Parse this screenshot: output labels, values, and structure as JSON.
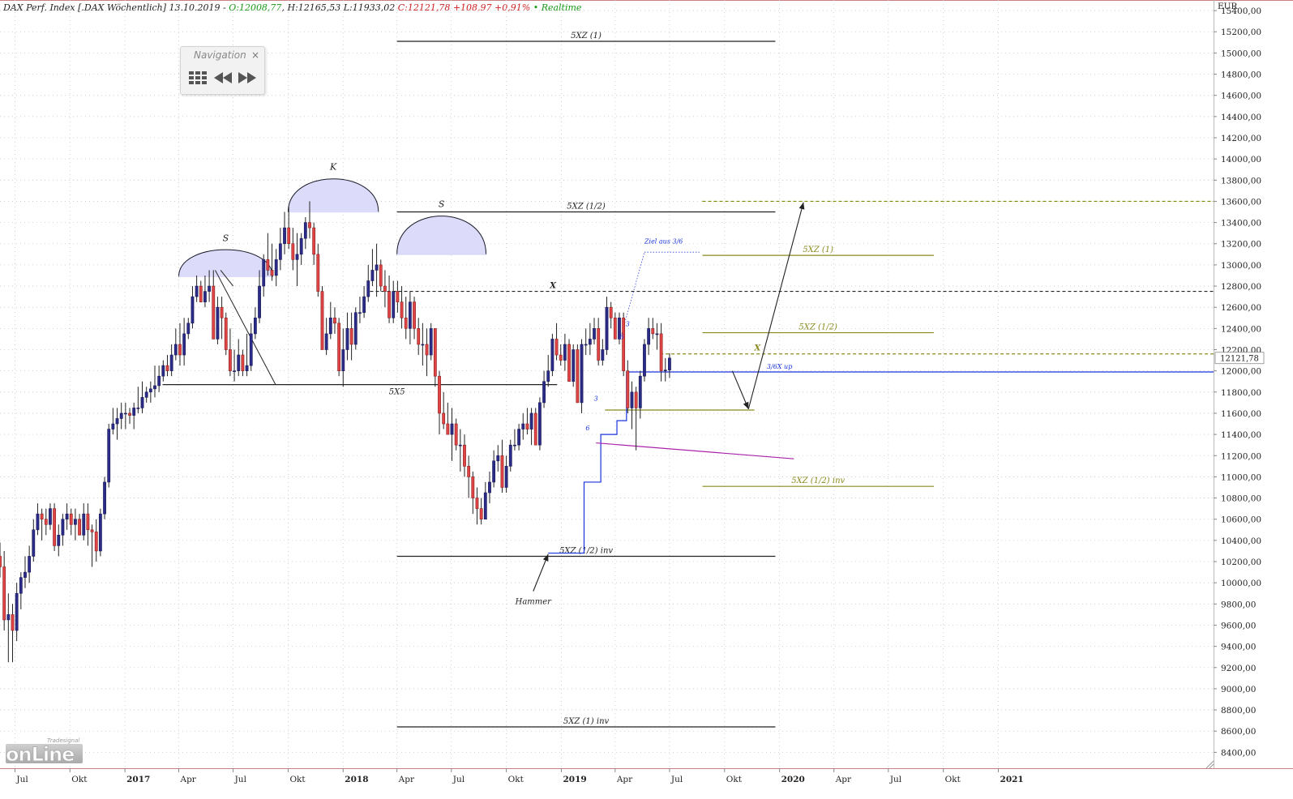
{
  "header": {
    "instrument": "DAX Perf. Index [.DAX Wöchentlich] 13.10.2019 -",
    "open": "O:12008,77",
    "high_low": "H:12165,53 L:11933,02",
    "close": "C:12121,78 +108,97 +0,91%",
    "realtime": "• Realtime"
  },
  "navigation": {
    "title": "Navigation",
    "close": "×"
  },
  "logo": {
    "small": "Tradesignal",
    "big": "onLine"
  },
  "chart_data": {
    "type": "candlestick",
    "title": "DAX Perf. Index [.DAX Wöchentlich] 13.10.2019",
    "currency_label": "EUR",
    "y_range": [
      8250,
      15500
    ],
    "y_ticks": [
      8400,
      8600,
      8800,
      9000,
      9200,
      9400,
      9600,
      9800,
      10000,
      10200,
      10400,
      10600,
      10800,
      11000,
      11200,
      11400,
      11600,
      11800,
      12000,
      12200,
      12400,
      12600,
      12800,
      13000,
      13200,
      13400,
      13600,
      13800,
      14000,
      14200,
      14400,
      14600,
      14800,
      15000,
      15200,
      15400
    ],
    "y_tick_labels": [
      "8400,00",
      "8600,00",
      "8800,00",
      "9000,00",
      "9200,00",
      "9400,00",
      "9600,00",
      "9800,00",
      "10000,00",
      "10200,00",
      "10400,00",
      "10600,00",
      "10800,00",
      "11000,00",
      "11200,00",
      "11400,00",
      "11600,00",
      "11800,00",
      "12000,00",
      "12200,00",
      "12400,00",
      "12600,00",
      "12800,00",
      "13000,00",
      "13200,00",
      "13400,00",
      "13600,00",
      "13800,00",
      "14000,00",
      "14200,00",
      "14400,00",
      "14600,00",
      "14800,00",
      "15000,00",
      "15200,00",
      "15400,00"
    ],
    "x_range": [
      "2016-06-06",
      "2021-12-27"
    ],
    "x_ticks": [
      {
        "date": "2016-07-01",
        "label": "Jul",
        "bold": false
      },
      {
        "date": "2016-10-01",
        "label": "Okt",
        "bold": false
      },
      {
        "date": "2017-01-01",
        "label": "2017",
        "bold": true
      },
      {
        "date": "2017-04-01",
        "label": "Apr",
        "bold": false
      },
      {
        "date": "2017-07-01",
        "label": "Jul",
        "bold": false
      },
      {
        "date": "2017-10-01",
        "label": "Okt",
        "bold": false
      },
      {
        "date": "2018-01-01",
        "label": "2018",
        "bold": true
      },
      {
        "date": "2018-04-01",
        "label": "Apr",
        "bold": false
      },
      {
        "date": "2018-07-01",
        "label": "Jul",
        "bold": false
      },
      {
        "date": "2018-10-01",
        "label": "Okt",
        "bold": false
      },
      {
        "date": "2019-01-01",
        "label": "2019",
        "bold": true
      },
      {
        "date": "2019-04-01",
        "label": "Apr",
        "bold": false
      },
      {
        "date": "2019-07-01",
        "label": "Jul",
        "bold": false
      },
      {
        "date": "2019-10-01",
        "label": "Okt",
        "bold": false
      },
      {
        "date": "2020-01-01",
        "label": "2020",
        "bold": true
      },
      {
        "date": "2020-04-01",
        "label": "Apr",
        "bold": false
      },
      {
        "date": "2020-07-01",
        "label": "Jul",
        "bold": false
      },
      {
        "date": "2020-10-01",
        "label": "Okt",
        "bold": false
      },
      {
        "date": "2021-01-01",
        "label": "2021",
        "bold": true
      }
    ],
    "grid": true,
    "last_price": {
      "value": 12121.78,
      "label": "12121,78"
    },
    "candles": {
      "first_date": "2016-06-06",
      "interval_days": 7,
      "open": [
        10250,
        10150,
        9650,
        9700,
        9550,
        9900,
        10050,
        10100,
        10250,
        10500,
        10650,
        10600,
        10550,
        10700,
        10350,
        10450,
        10600,
        10650,
        10550,
        10600,
        10450,
        10650,
        10500,
        10480,
        10300,
        10650,
        10950,
        11450,
        11500,
        11550,
        11600,
        11600,
        11580,
        11650,
        11650,
        11750,
        11800,
        11830,
        11860,
        11950,
        12050,
        12000,
        12150,
        12250,
        12150,
        12350,
        12450,
        12700,
        12800,
        12650,
        12750,
        12800,
        12300,
        12600,
        12500,
        12200,
        12000,
        12000,
        12150,
        12000,
        12050,
        12350,
        12500,
        12800,
        13050,
        12950,
        12900,
        13050,
        13200,
        13350,
        13200,
        13050,
        13100,
        13250,
        13400,
        13350,
        13100,
        12750,
        12200,
        12350,
        12500,
        12450,
        12000,
        12200,
        12400,
        12250,
        12550,
        12550,
        12700,
        12850,
        12950,
        13000,
        12800,
        12750,
        12500,
        12750,
        12650,
        12500,
        12400,
        12650,
        12400,
        12250,
        12250,
        12150,
        12400,
        11950,
        11600,
        11500,
        11400,
        11500,
        11300,
        11300,
        11100,
        11000,
        10800,
        10700,
        10600,
        10850,
        10950,
        11150,
        11200,
        10900,
        11100,
        11300,
        11300,
        11450,
        11500,
        11450,
        11600,
        11300,
        11700,
        11900,
        12000,
        12300,
        12150,
        12100,
        12250,
        11900,
        12200,
        11700,
        12250,
        12250,
        12300,
        12400,
        12100,
        12200,
        12600,
        12500,
        12300,
        12500,
        12000,
        11650,
        11800,
        11650,
        11950,
        12250,
        12400,
        12350,
        12350,
        12000,
        12008
      ],
      "high": [
        10380,
        10300,
        9900,
        9800,
        10000,
        10100,
        10250,
        10350,
        10600,
        10750,
        10700,
        10700,
        10750,
        10750,
        10550,
        10650,
        10750,
        10700,
        10700,
        10650,
        10750,
        10750,
        10550,
        10600,
        10700,
        11000,
        11500,
        11650,
        11650,
        11700,
        11700,
        11650,
        11700,
        11850,
        11900,
        11850,
        11900,
        12050,
        12050,
        12100,
        12150,
        12250,
        12400,
        12450,
        12500,
        12500,
        12800,
        12900,
        12850,
        12900,
        12950,
        12950,
        12700,
        12700,
        12550,
        12400,
        12200,
        12300,
        12200,
        12350,
        12450,
        12600,
        12950,
        13100,
        13300,
        13200,
        13150,
        13350,
        13500,
        13550,
        13350,
        13300,
        13300,
        13450,
        13600,
        13400,
        13200,
        12800,
        12500,
        12650,
        12600,
        12500,
        12400,
        12550,
        12550,
        12600,
        12700,
        12800,
        13000,
        13150,
        13200,
        13050,
        12950,
        12900,
        12850,
        12850,
        12800,
        12700,
        12750,
        12700,
        12500,
        12450,
        12400,
        12450,
        12400,
        12000,
        11800,
        11700,
        11650,
        11550,
        11450,
        11400,
        11200,
        11050,
        10900,
        10800,
        10950,
        11050,
        11250,
        11300,
        11350,
        11200,
        11350,
        11450,
        11500,
        11600,
        11650,
        11650,
        11650,
        11750,
        12000,
        12150,
        12350,
        12450,
        12250,
        12350,
        12300,
        12250,
        12250,
        12300,
        12400,
        12450,
        12500,
        12500,
        12300,
        12700,
        12650,
        12550,
        12550,
        12550,
        12100,
        11900,
        11850,
        12000,
        12300,
        12500,
        12500,
        12450,
        12450,
        12120,
        12165
      ],
      "low": [
        10050,
        9550,
        9250,
        9250,
        9450,
        9750,
        9950,
        10000,
        10200,
        10450,
        10400,
        10450,
        10500,
        10300,
        10250,
        10350,
        10500,
        10450,
        10400,
        10450,
        10400,
        10350,
        10150,
        10200,
        10250,
        10600,
        10900,
        11400,
        11350,
        11450,
        11450,
        11500,
        11450,
        11600,
        11600,
        11700,
        11700,
        11750,
        11800,
        11900,
        11950,
        11950,
        12100,
        12050,
        12050,
        12300,
        12400,
        12650,
        12650,
        12600,
        12650,
        12350,
        12250,
        12300,
        12150,
        11950,
        11900,
        11950,
        11950,
        11950,
        12000,
        12300,
        12450,
        12700,
        12900,
        12850,
        12800,
        12950,
        13100,
        13150,
        12950,
        12800,
        13000,
        13150,
        13250,
        13000,
        12700,
        12200,
        12150,
        12300,
        12350,
        11950,
        11850,
        12100,
        12100,
        12200,
        12450,
        12500,
        12650,
        12800,
        12700,
        12750,
        12600,
        12450,
        12450,
        12550,
        12400,
        12300,
        12250,
        12300,
        12150,
        12050,
        11950,
        12100,
        11850,
        11400,
        11450,
        11400,
        11150,
        11250,
        11050,
        11000,
        10800,
        10650,
        10550,
        10550,
        10600,
        10750,
        10900,
        11050,
        10850,
        10850,
        11050,
        11250,
        11250,
        11350,
        11400,
        11300,
        11300,
        11250,
        11650,
        11850,
        11950,
        12100,
        12050,
        12000,
        11950,
        11850,
        11850,
        11600,
        12150,
        12150,
        12250,
        12050,
        12050,
        12150,
        12400,
        12300,
        12250,
        11950,
        11600,
        11450,
        11250,
        11550,
        11900,
        12150,
        12300,
        12200,
        11900,
        11900,
        11933
      ],
      "close": [
        10150,
        9650,
        9700,
        9550,
        9900,
        10050,
        10100,
        10250,
        10500,
        10650,
        10600,
        10550,
        10700,
        10350,
        10450,
        10600,
        10650,
        10550,
        10600,
        10450,
        10650,
        10500,
        10480,
        10300,
        10650,
        10950,
        11450,
        11500,
        11550,
        11600,
        11600,
        11580,
        11650,
        11650,
        11750,
        11800,
        11830,
        11860,
        11950,
        12050,
        12000,
        12150,
        12250,
        12150,
        12350,
        12450,
        12700,
        12800,
        12650,
        12750,
        12800,
        12300,
        12600,
        12500,
        12200,
        12000,
        12000,
        12150,
        12000,
        12050,
        12350,
        12500,
        12800,
        13050,
        12950,
        12900,
        13050,
        13200,
        13350,
        13200,
        13050,
        13100,
        13250,
        13400,
        13350,
        13100,
        12750,
        12200,
        12350,
        12500,
        12450,
        12000,
        12200,
        12400,
        12250,
        12550,
        12550,
        12700,
        12850,
        12950,
        13000,
        12800,
        12750,
        12500,
        12750,
        12650,
        12500,
        12400,
        12650,
        12400,
        12250,
        12250,
        12150,
        12400,
        11950,
        11600,
        11500,
        11400,
        11500,
        11300,
        11300,
        11100,
        11000,
        10800,
        10700,
        10600,
        10850,
        10950,
        11150,
        11200,
        10900,
        11100,
        11300,
        11300,
        11450,
        11500,
        11450,
        11600,
        11300,
        11700,
        11900,
        12000,
        12300,
        12150,
        12100,
        12250,
        11900,
        12200,
        11700,
        12250,
        12250,
        12300,
        12400,
        12100,
        12200,
        12600,
        12500,
        12300,
        12500,
        12000,
        11650,
        11800,
        11650,
        11950,
        12250,
        12400,
        12350,
        12350,
        12000,
        12008,
        12121
      ]
    },
    "annotations": {
      "arcs": [
        {
          "label": "S",
          "start": "2017-04-01",
          "end": "2017-09-05",
          "base": 12890,
          "peak": 13150
        },
        {
          "label": "K",
          "start": "2017-10-01",
          "end": "2018-03-01",
          "base": 13500,
          "peak": 13820
        },
        {
          "label": "S",
          "start": "2018-04-01",
          "end": "2018-08-28",
          "base": 13100,
          "peak": 13470
        }
      ],
      "lines": [
        {
          "label": "5XZ (1)",
          "y": 15110,
          "x1": "2018-04-01",
          "x2": "2019-12-25",
          "color": "#222222",
          "dash": false
        },
        {
          "label": "5XZ (1/2)",
          "y": 13500,
          "x1": "2018-04-01",
          "x2": "2019-12-25",
          "color": "#222222",
          "dash": false
        },
        {
          "label": "X",
          "y": 12750,
          "x1": "2018-02-15",
          "x2": "2021-12-27",
          "color": "#222222",
          "dash": true
        },
        {
          "label": "",
          "y": 11870,
          "x1": "2017-03-05",
          "x2": "2018-12-25",
          "color": "#222222",
          "dash": false
        },
        {
          "label": "5XZ (1/2) inv",
          "y": 10250,
          "x1": "2018-04-01",
          "x2": "2019-12-25",
          "color": "#222222",
          "dash": false
        },
        {
          "label": "5XZ (1) inv",
          "y": 8640,
          "x1": "2018-04-01",
          "x2": "2019-12-25",
          "color": "#222222",
          "dash": false
        },
        {
          "label": "",
          "y": 13600,
          "x1": "2019-08-25",
          "x2": "2021-12-27",
          "color": "#7f8a00",
          "dash": true
        },
        {
          "label": "5XZ (1)",
          "y": 13090,
          "x1": "2019-08-25",
          "x2": "2020-09-15",
          "color": "#8a8a1e",
          "dash": false
        },
        {
          "label": "5XZ (1/2)",
          "y": 12360,
          "x1": "2019-08-25",
          "x2": "2020-09-15",
          "color": "#8a8a1e",
          "dash": false
        },
        {
          "label": "X",
          "y": 12160,
          "x1": "2019-06-15",
          "x2": "2021-12-27",
          "color": "#8a8a1e",
          "dash": true
        },
        {
          "label": "",
          "y": 11630,
          "x1": "2019-03-15",
          "x2": "2019-11-20",
          "color": "#8a8a1e",
          "dash": false
        },
        {
          "label": "5XZ (1/2) inv",
          "y": 10910,
          "x1": "2019-08-25",
          "x2": "2020-09-15",
          "color": "#8a8a1e",
          "dash": false
        },
        {
          "label": "3/6X up",
          "y": 11990,
          "x1": "2019-05-10",
          "x2": "2021-12-27",
          "color": "#1a33dd",
          "dash": false
        }
      ],
      "texts": [
        {
          "text": "5X5",
          "date": "2018-04-01",
          "y": 11780
        },
        {
          "text": "Hammer",
          "date": "2018-11-15",
          "y": 9800
        },
        {
          "text": "Ziel aus 3/6",
          "date": "2019-05-20",
          "y": 13200
        }
      ],
      "wave_labels": [
        "3",
        "6",
        "3",
        "6"
      ]
    }
  }
}
